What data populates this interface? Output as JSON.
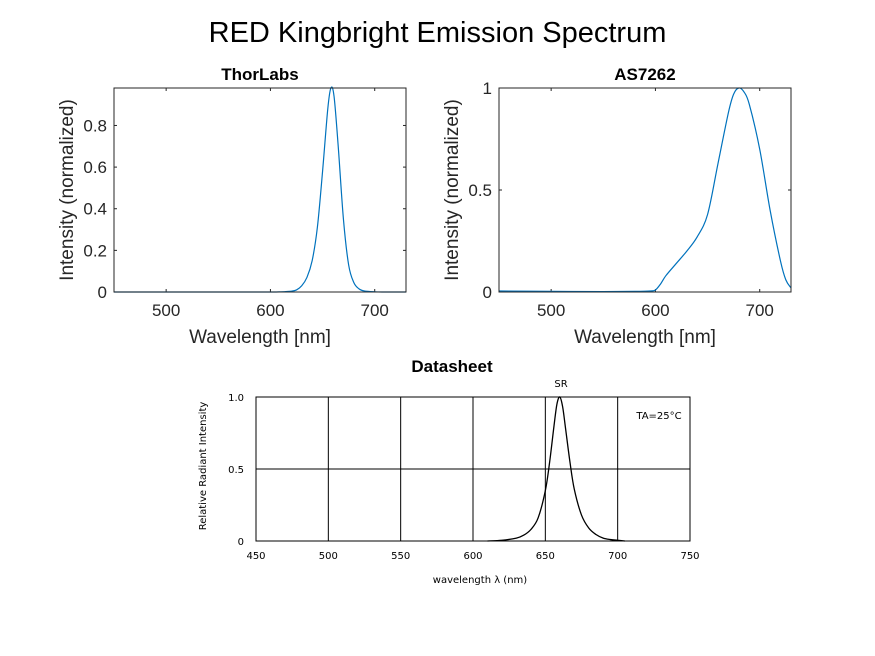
{
  "figure_title": "RED Kingbright Emission Spectrum",
  "chart_data": [
    {
      "type": "line",
      "title": "ThorLabs",
      "xlabel": "Wavelength [nm]",
      "ylabel": "Intensity (normalized)",
      "xlim": [
        450,
        730
      ],
      "ylim": [
        0,
        0.98
      ],
      "xticks": [
        500,
        600,
        700
      ],
      "yticks": [
        0,
        0.2,
        0.4,
        0.6,
        0.8
      ],
      "grid": false,
      "line_color": "#0072BD",
      "x": [
        450,
        500,
        550,
        600,
        610,
        620,
        625,
        630,
        635,
        640,
        645,
        650,
        655,
        658,
        661,
        665,
        670,
        675,
        680,
        685,
        690,
        700,
        710,
        730
      ],
      "y": [
        0,
        0,
        0,
        0,
        0.001,
        0.004,
        0.01,
        0.03,
        0.07,
        0.15,
        0.31,
        0.58,
        0.88,
        0.98,
        0.94,
        0.7,
        0.35,
        0.13,
        0.045,
        0.015,
        0.005,
        0.001,
        0,
        0
      ]
    },
    {
      "type": "line",
      "title": "AS7262",
      "xlabel": "Wavelength [nm]",
      "ylabel": "Intensity (normalized)",
      "xlim": [
        450,
        730
      ],
      "ylim": [
        0,
        1
      ],
      "xticks": [
        500,
        600,
        700
      ],
      "yticks": [
        0,
        0.5,
        1
      ],
      "grid": false,
      "line_color": "#0072BD",
      "x": [
        450,
        500,
        550,
        580,
        595,
        600,
        605,
        610,
        620,
        630,
        640,
        650,
        660,
        670,
        675,
        680,
        685,
        690,
        700,
        710,
        720,
        725,
        730
      ],
      "y": [
        0.005,
        0.003,
        0.002,
        0.003,
        0.005,
        0.01,
        0.04,
        0.08,
        0.14,
        0.2,
        0.27,
        0.38,
        0.63,
        0.88,
        0.97,
        1.0,
        0.98,
        0.92,
        0.7,
        0.4,
        0.15,
        0.06,
        0.02
      ]
    },
    {
      "type": "line",
      "title": "Datasheet",
      "xlabel": "wavelength λ (nm)",
      "ylabel": "Relative Radiant Intensity",
      "annotation_peak": "SR",
      "annotation_temp": "TA=25°C",
      "xlim": [
        450,
        750
      ],
      "ylim": [
        0,
        1.0
      ],
      "xticks": [
        450,
        500,
        550,
        600,
        650,
        700,
        750
      ],
      "yticks": [
        0,
        0.5,
        1.0
      ],
      "ytick_labels": [
        "0",
        "0.5",
        "1.0"
      ],
      "grid": true,
      "line_color": "#000000",
      "x": [
        610,
        620,
        630,
        635,
        640,
        645,
        650,
        653,
        656,
        658,
        660,
        662,
        664,
        667,
        670,
        675,
        680,
        685,
        690,
        695,
        700,
        705
      ],
      "y": [
        0,
        0.005,
        0.02,
        0.04,
        0.08,
        0.16,
        0.35,
        0.55,
        0.8,
        0.95,
        1.0,
        0.93,
        0.78,
        0.55,
        0.36,
        0.18,
        0.09,
        0.045,
        0.02,
        0.01,
        0.005,
        0
      ]
    }
  ]
}
